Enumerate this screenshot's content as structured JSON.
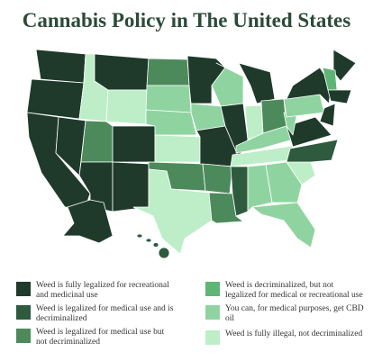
{
  "title": "Cannabis Policy in The United States",
  "legend": [
    {
      "label": "Weed is fully legalized for recreational and medicinal use",
      "color": "#1f3a2b"
    },
    {
      "label": "Weed is legalized for medical use and is decriminalized",
      "color": "#2e5b3e"
    },
    {
      "label": "Weed is legalized for medical use but not decriminalized",
      "color": "#4c8a5b"
    },
    {
      "label": "Weed is decriminalized, but not legalized for medical or recreational use",
      "color": "#5fb574"
    },
    {
      "label": "You can, for medical purposes, get CBD oil",
      "color": "#8fd4a0"
    },
    {
      "label": "Weed is fully illegal, not decriminalized",
      "color": "#bdeec8"
    }
  ]
}
